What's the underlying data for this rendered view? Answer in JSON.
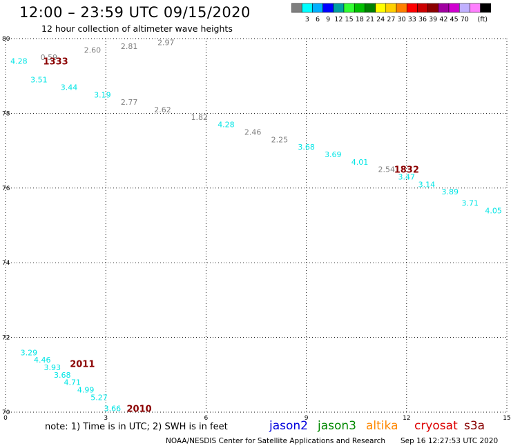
{
  "header": {
    "title": "12:00 – 23:59 UTC 09/15/2020",
    "subtitle": "12 hour collection of altimeter wave heights"
  },
  "colorbar": {
    "colors": [
      "#7f7f7f",
      "#00ffff",
      "#00b0ff",
      "#0000ff",
      "#00a0a0",
      "#33ff33",
      "#00c000",
      "#008000",
      "#ffff00",
      "#ffd000",
      "#ff8000",
      "#ff0000",
      "#cc0000",
      "#8b0000",
      "#a000a0",
      "#d000d0",
      "#c0b0ff",
      "#ff80ff",
      "#000000"
    ],
    "labels": [
      "3",
      "6",
      "9",
      "12",
      "15",
      "18",
      "21",
      "24",
      "27",
      "30",
      "33",
      "36",
      "39",
      "42",
      "45",
      "70"
    ],
    "unit": "(ft)"
  },
  "chart_data": {
    "type": "scatter",
    "xlabel": "",
    "ylabel": "",
    "xlim": [
      0,
      15
    ],
    "ylim": [
      70,
      80
    ],
    "x_ticks": [
      "0",
      "3",
      "6",
      "9",
      "12",
      "15"
    ],
    "y_ticks": [
      "70",
      "72",
      "74",
      "76",
      "78",
      "80"
    ],
    "points": [
      {
        "x": 0.4,
        "y": 79.4,
        "label": "4.28",
        "color": "#00e5e5"
      },
      {
        "x": 1.3,
        "y": 79.5,
        "label": "0.59",
        "color": "#808080"
      },
      {
        "x": 2.6,
        "y": 79.7,
        "label": "2.60",
        "color": "#808080"
      },
      {
        "x": 3.7,
        "y": 79.8,
        "label": "2.81",
        "color": "#808080"
      },
      {
        "x": 4.8,
        "y": 79.9,
        "label": "2.97",
        "color": "#808080"
      },
      {
        "x": 1.0,
        "y": 78.9,
        "label": "3.51",
        "color": "#00e5e5"
      },
      {
        "x": 1.9,
        "y": 78.7,
        "label": "3.44",
        "color": "#00e5e5"
      },
      {
        "x": 2.9,
        "y": 78.5,
        "label": "3.19",
        "color": "#00e5e5"
      },
      {
        "x": 3.7,
        "y": 78.3,
        "label": "2.77",
        "color": "#808080"
      },
      {
        "x": 4.7,
        "y": 78.1,
        "label": "2.62",
        "color": "#808080"
      },
      {
        "x": 5.8,
        "y": 77.9,
        "label": "1.82",
        "color": "#808080"
      },
      {
        "x": 6.6,
        "y": 77.7,
        "label": "4.28",
        "color": "#00e5e5"
      },
      {
        "x": 7.4,
        "y": 77.5,
        "label": "2.46",
        "color": "#808080"
      },
      {
        "x": 8.2,
        "y": 77.3,
        "label": "2.25",
        "color": "#808080"
      },
      {
        "x": 9.0,
        "y": 77.1,
        "label": "3.68",
        "color": "#00e5e5"
      },
      {
        "x": 9.8,
        "y": 76.9,
        "label": "3.69",
        "color": "#00e5e5"
      },
      {
        "x": 10.6,
        "y": 76.7,
        "label": "4.01",
        "color": "#00e5e5"
      },
      {
        "x": 11.4,
        "y": 76.5,
        "label": "2.54",
        "color": "#808080"
      },
      {
        "x": 12.0,
        "y": 76.3,
        "label": "3.47",
        "color": "#00e5e5"
      },
      {
        "x": 12.6,
        "y": 76.1,
        "label": "3.14",
        "color": "#00e5e5"
      },
      {
        "x": 13.3,
        "y": 75.9,
        "label": "3.89",
        "color": "#00e5e5"
      },
      {
        "x": 13.9,
        "y": 75.6,
        "label": "3.71",
        "color": "#00e5e5"
      },
      {
        "x": 14.6,
        "y": 75.4,
        "label": "4.05",
        "color": "#00e5e5"
      },
      {
        "x": 0.7,
        "y": 71.6,
        "label": "3.29",
        "color": "#00e5e5"
      },
      {
        "x": 1.1,
        "y": 71.4,
        "label": "4.46",
        "color": "#00e5e5"
      },
      {
        "x": 1.4,
        "y": 71.2,
        "label": "3.93",
        "color": "#00e5e5"
      },
      {
        "x": 1.7,
        "y": 71.0,
        "label": "3.68",
        "color": "#00e5e5"
      },
      {
        "x": 2.0,
        "y": 70.8,
        "label": "4.71",
        "color": "#00e5e5"
      },
      {
        "x": 2.4,
        "y": 70.6,
        "label": "4.99",
        "color": "#00e5e5"
      },
      {
        "x": 2.8,
        "y": 70.4,
        "label": "5.27",
        "color": "#00e5e5"
      },
      {
        "x": 3.2,
        "y": 70.1,
        "label": "3.66",
        "color": "#00e5e5"
      }
    ],
    "pass_times": [
      {
        "x": 1.5,
        "y": 79.4,
        "label": "1333"
      },
      {
        "x": 12.0,
        "y": 76.5,
        "label": "1832"
      },
      {
        "x": 2.3,
        "y": 71.3,
        "label": "2011"
      },
      {
        "x": 4.0,
        "y": 70.1,
        "label": "2010"
      }
    ],
    "grid": true
  },
  "footer": {
    "note": "note: 1) Time is in UTC; 2) SWH is in feet",
    "satellites": [
      {
        "name": "jason2",
        "color": "#0000dd"
      },
      {
        "name": "jason3",
        "color": "#008800"
      },
      {
        "name": "altika",
        "color": "#ff8800"
      },
      {
        "name": "cryosat",
        "color": "#dd0000"
      },
      {
        "name": "s3a",
        "color": "#880000"
      }
    ],
    "credit": "NOAA/NESDIS Center for Satellite Applications and Research",
    "timestamp": "Sep 16 12:27:53 UTC 2020"
  }
}
